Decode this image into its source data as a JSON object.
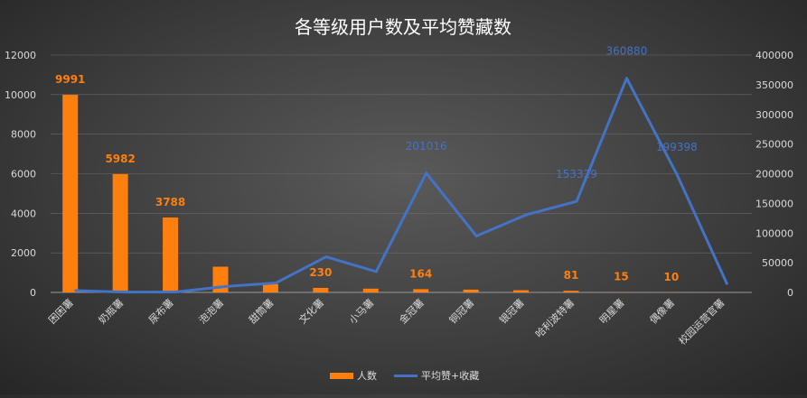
{
  "chart_data": {
    "type": "bar+line",
    "title": "各等级用户数及平均赞藏数",
    "categories": [
      "困困薯",
      "奶瓶薯",
      "尿布薯",
      "泡泡薯",
      "甜筒薯",
      "文化薯",
      "小马薯",
      "金冠薯",
      "铜冠薯",
      "银冠薯",
      "哈利波特薯",
      "明星薯",
      "偶像薯",
      "校园运营官薯"
    ],
    "series": [
      {
        "name": "人数",
        "type": "bar",
        "axis": "left",
        "color": "#ff7f0e",
        "values": [
          9991,
          5982,
          3788,
          1300,
          420,
          230,
          190,
          164,
          140,
          110,
          81,
          15,
          10,
          5
        ],
        "data_labels": [
          "9991",
          "5982",
          "3788",
          "",
          "",
          "230",
          "",
          "164",
          "",
          "",
          "81",
          "15",
          "10",
          ""
        ]
      },
      {
        "name": "平均赞+收藏",
        "type": "line",
        "axis": "right",
        "color": "#4472c4",
        "values": [
          3000,
          500,
          800,
          10000,
          16000,
          60000,
          35000,
          201016,
          95000,
          131000,
          153329,
          360880,
          199398,
          15000
        ],
        "data_labels": [
          "",
          "",
          "",
          "",
          "",
          "",
          "",
          "201016",
          "",
          "",
          "153329",
          "360880",
          "199398",
          ""
        ]
      }
    ],
    "y_left": {
      "min": 0,
      "max": 12000,
      "ticks": [
        "0",
        "2000",
        "4000",
        "6000",
        "8000",
        "10000",
        "12000"
      ]
    },
    "y_right": {
      "min": 0,
      "max": 400000,
      "ticks": [
        "0",
        "50000",
        "100000",
        "150000",
        "200000",
        "250000",
        "300000",
        "350000",
        "400000"
      ]
    },
    "grid": true,
    "legend": {
      "position": "bottom"
    }
  }
}
